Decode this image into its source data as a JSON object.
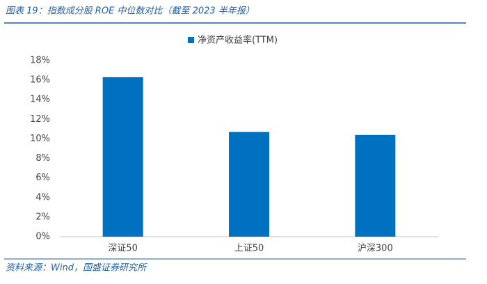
{
  "title": "图表 19：指数成分股 ROE 中位数对比（截至 2023 半年报）",
  "source": "资料来源：Wind，国盛证券研究所",
  "chart_data": {
    "type": "bar",
    "categories": [
      "深证50",
      "上证50",
      "沪深300"
    ],
    "series": [
      {
        "name": "净资产收益率(TTM)",
        "color": "#0070c0",
        "values": [
          16.3,
          10.7,
          10.4
        ]
      }
    ],
    "ylim": [
      0,
      18
    ],
    "yticks": [
      {
        "value": 0,
        "label": "0%"
      },
      {
        "value": 2,
        "label": "2%"
      },
      {
        "value": 4,
        "label": "4%"
      },
      {
        "value": 6,
        "label": "6%"
      },
      {
        "value": 8,
        "label": "8%"
      },
      {
        "value": 10,
        "label": "10%"
      },
      {
        "value": 12,
        "label": "12%"
      },
      {
        "value": 14,
        "label": "14%"
      },
      {
        "value": 16,
        "label": "16%"
      },
      {
        "value": 18,
        "label": "18%"
      }
    ],
    "grid": false,
    "legend": "top"
  }
}
